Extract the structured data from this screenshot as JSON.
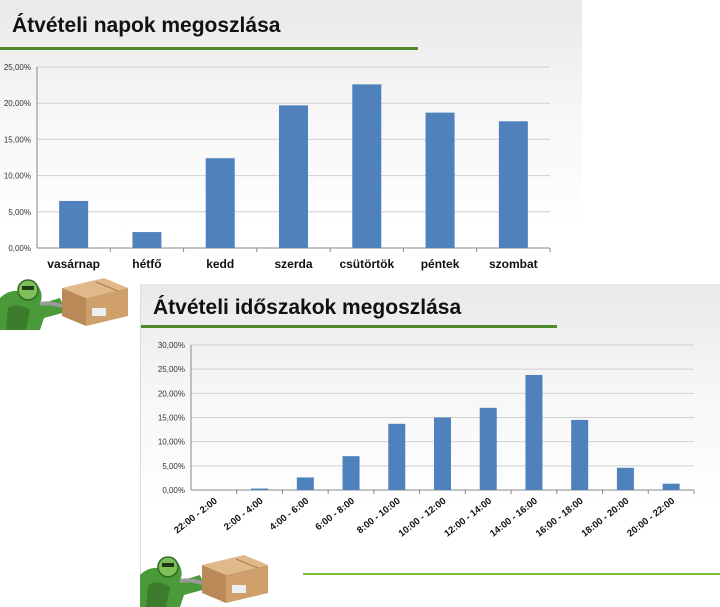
{
  "slides": [
    {
      "title": "Átvételi napok megoszlása"
    },
    {
      "title": "Átvételi időszakok megoszlása"
    }
  ],
  "colors": {
    "bar": "#4f81bd",
    "grid": "#d0d0d0",
    "title_rule": "#4f8a2a",
    "bottom_rule": "#7bbf3b"
  },
  "icons": [
    "robot-courier-icon",
    "cardboard-box-icon"
  ],
  "chart_data": [
    {
      "type": "bar",
      "categories": [
        "vasárnap",
        "hétfő",
        "kedd",
        "szerda",
        "csütörtök",
        "péntek",
        "szombat"
      ],
      "values": [
        6.5,
        2.2,
        12.4,
        19.7,
        22.6,
        18.7,
        17.5
      ],
      "unit": "%",
      "ylim": [
        0,
        25
      ],
      "yticks": [
        "0,00%",
        "5,00%",
        "10,00%",
        "15,00%",
        "20,00%",
        "25,00%"
      ],
      "grid": true,
      "legend": "none"
    },
    {
      "type": "bar",
      "categories": [
        "22:00 - 2:00",
        "2:00 - 4:00",
        "4:00 - 6:00",
        "6:00 - 8:00",
        "8:00 - 10:00",
        "10:00 - 12:00",
        "12:00 - 14:00",
        "14:00 - 16:00",
        "16:00 - 18:00",
        "18:00 - 20:00",
        "20:00 - 22:00"
      ],
      "values": [
        0.0,
        0.3,
        2.6,
        7.0,
        13.7,
        15.0,
        17.0,
        23.8,
        14.5,
        4.6,
        1.3
      ],
      "unit": "%",
      "ylim": [
        0,
        30
      ],
      "yticks": [
        "0,00%",
        "5,00%",
        "10,00%",
        "15,00%",
        "20,00%",
        "25,00%",
        "30,00%"
      ],
      "grid": true,
      "legend": "none"
    }
  ]
}
